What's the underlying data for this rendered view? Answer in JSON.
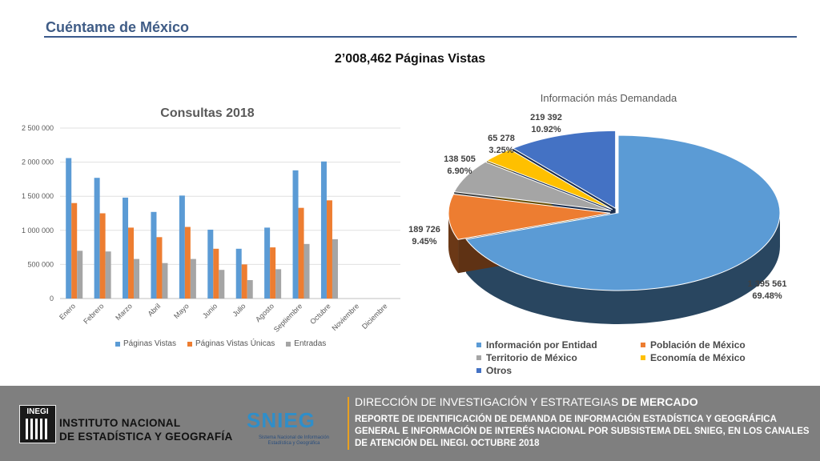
{
  "page": {
    "title": "Cuéntame de México",
    "headline": "2’008,462  Páginas Vistas"
  },
  "chart_data": [
    {
      "type": "bar",
      "title": "Consultas 2018",
      "categories": [
        "Enero",
        "Febrero",
        "Marzo",
        "Abril",
        "Mayo",
        "Junio",
        "Julio",
        "Agosto",
        "Septiembre",
        "Octubre",
        "Noviembre",
        "Diciembre"
      ],
      "yticks": [
        "0",
        "500 000",
        "1 000 000",
        "1 500 000",
        "2 000 000",
        "2 500 000"
      ],
      "ylim": [
        0,
        2500000
      ],
      "grid": true,
      "legend_position": "bottom",
      "series": [
        {
          "name": "Páginas Vistas",
          "color": "#5b9bd5",
          "values": [
            2060000,
            1770000,
            1480000,
            1270000,
            1510000,
            1010000,
            730000,
            1040000,
            1880000,
            2010000,
            null,
            null
          ]
        },
        {
          "name": "Páginas Vistas Únicas",
          "color": "#ed7d31",
          "values": [
            1400000,
            1250000,
            1040000,
            900000,
            1050000,
            730000,
            500000,
            750000,
            1330000,
            1440000,
            null,
            null
          ]
        },
        {
          "name": "Entradas",
          "color": "#a5a5a5",
          "values": [
            700000,
            690000,
            580000,
            520000,
            580000,
            420000,
            270000,
            430000,
            800000,
            870000,
            null,
            null
          ]
        }
      ]
    },
    {
      "type": "pie",
      "title": "Información más Demandada",
      "legend_position": "bottom",
      "slices": [
        {
          "name": "Información por Entidad",
          "value": "1 395 561",
          "percent": "69.48%",
          "share": 0.6948,
          "color": "#5b9bd5"
        },
        {
          "name": "Población de México",
          "value": "189 726",
          "percent": "9.45%",
          "share": 0.0945,
          "color": "#ed7d31"
        },
        {
          "name": "Territorio de México",
          "value": "138 505",
          "percent": "6.90%",
          "share": 0.069,
          "color": "#a5a5a5"
        },
        {
          "name": "Economía de México",
          "value": "65 278",
          "percent": "3.25%",
          "share": 0.0325,
          "color": "#ffc000"
        },
        {
          "name": "Otros",
          "value": "219 392",
          "percent": "10.92%",
          "share": 0.1092,
          "color": "#4472c4"
        }
      ]
    }
  ],
  "footer": {
    "logo_text": "INEGI",
    "institute_line1": "INSTITUTO NACIONAL",
    "institute_line2": "DE ESTADÍSTICA Y GEOGRAFÍA",
    "snieg_logo": "SNIEG",
    "snieg_sub": "Sistema Nacional de Información Estadística y Geográfica",
    "dept_a": "DIRECCIÓN DE INVESTIGACIÓN Y ESTRATEGIAS ",
    "dept_b": "DE MERCADO",
    "report": "REPORTE DE IDENTIFICACIÓN DE DEMANDA DE INFORMACIÓN ESTADÍSTICA Y GEOGRÁFICA GENERAL E INFORMACIÓN DE INTERÉS NACIONAL POR SUBSISTEMA DEL SNIEG, EN LOS CANALES DE ATENCIÓN DEL INEGI. OCTUBRE 2018"
  }
}
